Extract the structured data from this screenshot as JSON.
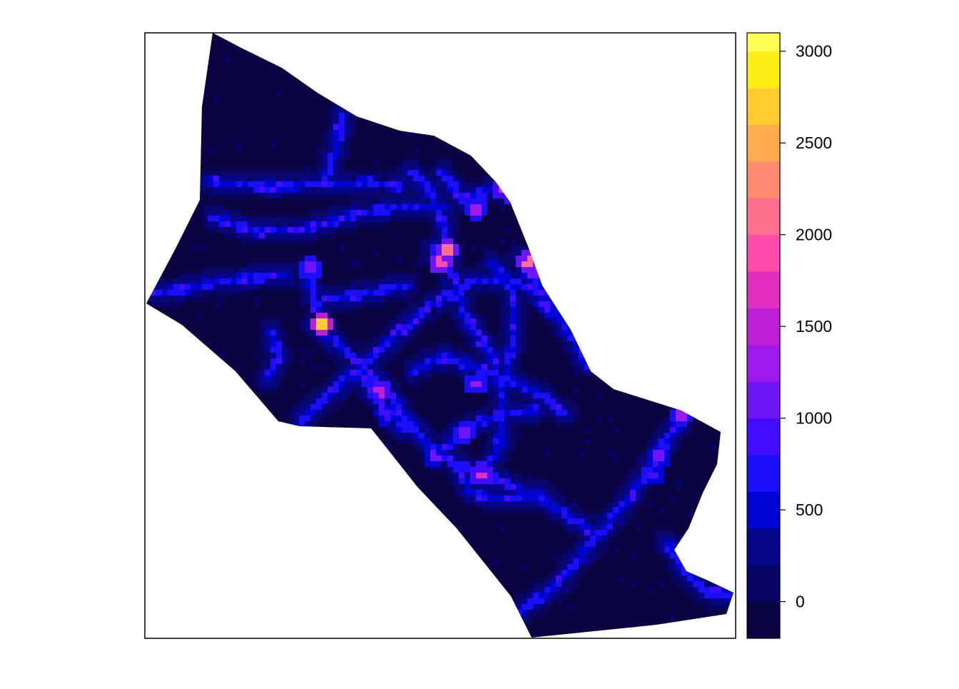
{
  "chart_data": {
    "type": "heatmap",
    "title": "",
    "xlabel": "",
    "ylabel": "",
    "grid": false,
    "axes_ticks": false,
    "colorbar": {
      "position": "right",
      "range": [
        -200,
        3100
      ],
      "breaks": [
        -200,
        0,
        200,
        400,
        600,
        800,
        1000,
        1200,
        1400,
        1600,
        1800,
        2000,
        2200,
        2400,
        2600,
        2800,
        3000,
        3100
      ],
      "colors": [
        "#0B0442",
        "#080565",
        "#05068A",
        "#0005D4",
        "#1B0EF8",
        "#420DFE",
        "#6D15F6",
        "#9E19EB",
        "#BF1ED7",
        "#E02FC0",
        "#FF4BA9",
        "#FF6F8E",
        "#FF8C70",
        "#FFAC4F",
        "#FFCC30",
        "#FFEE16",
        "#FFFF55"
      ],
      "tick_values": [
        0,
        500,
        1000,
        1500,
        2000,
        2500,
        3000
      ],
      "tick_labels": [
        "0",
        "500",
        "1000",
        "1500",
        "2000",
        "2500",
        "3000"
      ]
    },
    "background_value": 0,
    "hotspots": [
      {
        "x": 0.3,
        "y": 0.48,
        "value": 2700
      },
      {
        "x": 0.51,
        "y": 0.36,
        "value": 2000
      },
      {
        "x": 0.5,
        "y": 0.38,
        "value": 1900
      },
      {
        "x": 0.65,
        "y": 0.38,
        "value": 2100
      },
      {
        "x": 0.61,
        "y": 0.26,
        "value": 1700
      },
      {
        "x": 0.56,
        "y": 0.29,
        "value": 1300
      },
      {
        "x": 0.4,
        "y": 0.59,
        "value": 1500
      },
      {
        "x": 0.57,
        "y": 0.73,
        "value": 1600
      },
      {
        "x": 0.56,
        "y": 0.58,
        "value": 1200
      },
      {
        "x": 0.54,
        "y": 0.66,
        "value": 1100
      },
      {
        "x": 0.41,
        "y": 0.63,
        "value": 900
      },
      {
        "x": 0.49,
        "y": 0.7,
        "value": 1000
      },
      {
        "x": 0.68,
        "y": 0.45,
        "value": 900
      },
      {
        "x": 0.91,
        "y": 0.63,
        "value": 1300
      },
      {
        "x": 0.87,
        "y": 0.7,
        "value": 1000
      },
      {
        "x": 0.28,
        "y": 0.39,
        "value": 1100
      },
      {
        "x": 0.66,
        "y": 0.4,
        "value": 1000
      },
      {
        "x": 0.86,
        "y": 0.73,
        "value": 800
      }
    ]
  }
}
